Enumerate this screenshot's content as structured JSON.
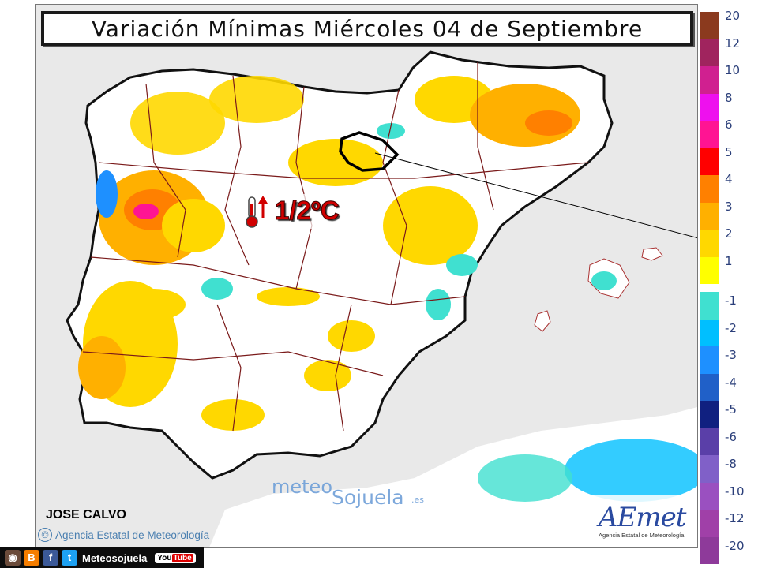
{
  "title": "Variación Mínimas Miércoles 04 de Septiembre",
  "annotation": {
    "text": "1/2ºC",
    "icon": "thermometer-rising-icon"
  },
  "author": "JOSE CALVO",
  "agency_credit": "Agencia Estatal de Meteorología",
  "copyright_symbol": "©",
  "watermark": {
    "part1": "meteo",
    "part2": "Sojuela",
    "part3": ".es"
  },
  "logo": {
    "name": "AEmet",
    "subtitle": "Agencia Estatal de Meteorología"
  },
  "legend": {
    "items": [
      {
        "label": "20",
        "color": "#8b3a1e"
      },
      {
        "label": "12",
        "color": "#a0245e"
      },
      {
        "label": "10",
        "color": "#d02090"
      },
      {
        "label": "8",
        "color": "#ee10ee"
      },
      {
        "label": "6",
        "color": "#ff1493"
      },
      {
        "label": "5",
        "color": "#ff0000"
      },
      {
        "label": "4",
        "color": "#ff8000"
      },
      {
        "label": "3",
        "color": "#ffb000"
      },
      {
        "label": "2",
        "color": "#ffd800"
      },
      {
        "label": "1",
        "color": "#ffff00"
      },
      {
        "label": "-1",
        "color": "#40e0d0"
      },
      {
        "label": "-2",
        "color": "#00bfff"
      },
      {
        "label": "-3",
        "color": "#1e90ff"
      },
      {
        "label": "-4",
        "color": "#2060c8"
      },
      {
        "label": "-5",
        "color": "#102080"
      },
      {
        "label": "-6",
        "color": "#5a3fa8"
      },
      {
        "label": "-8",
        "color": "#8060c8"
      },
      {
        "label": "-10",
        "color": "#9a50c0"
      },
      {
        "label": "-12",
        "color": "#a040a8"
      },
      {
        "label": "-20",
        "color": "#8e3a9a"
      }
    ]
  },
  "footer": {
    "label": "Meteosojuela",
    "icons": [
      "instagram-icon",
      "blogger-icon",
      "facebook-icon",
      "twitter-icon",
      "youtube-icon"
    ],
    "youtube_text": "You",
    "youtube_tube": "Tube"
  }
}
